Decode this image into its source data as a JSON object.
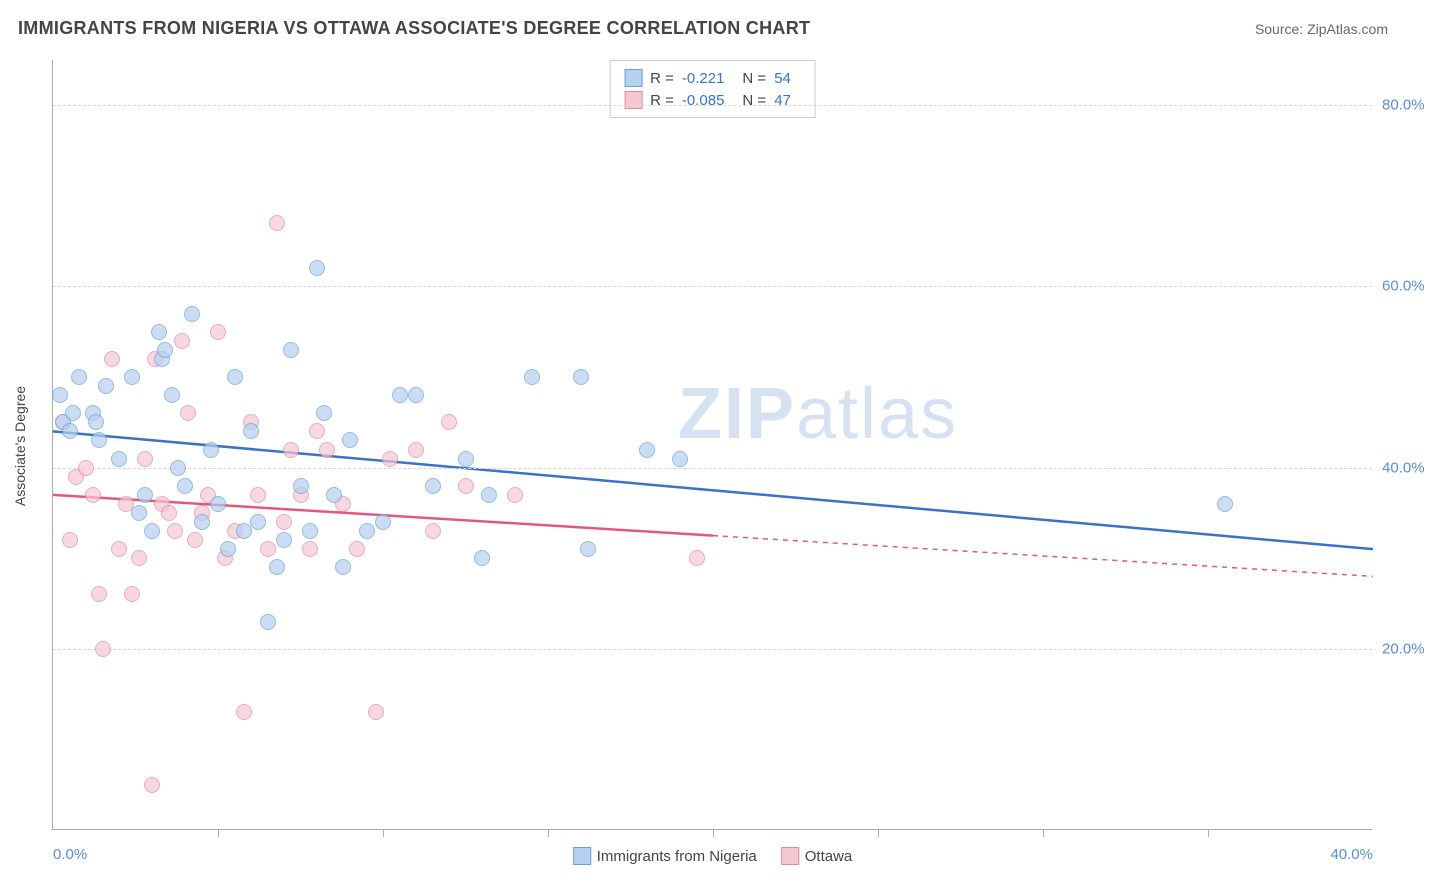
{
  "header": {
    "title": "IMMIGRANTS FROM NIGERIA VS OTTAWA ASSOCIATE'S DEGREE CORRELATION CHART",
    "source": "Source: ZipAtlas.com"
  },
  "chart": {
    "type": "scatter",
    "ylabel": "Associate's Degree",
    "xlim": [
      0,
      40
    ],
    "ylim": [
      0,
      85
    ],
    "xtick_minor_step": 5,
    "xtick_labels": [
      {
        "x": 0,
        "label": "0.0%"
      },
      {
        "x": 40,
        "label": "40.0%"
      }
    ],
    "ytick_labels": [
      {
        "y": 20,
        "label": "20.0%"
      },
      {
        "y": 40,
        "label": "40.0%"
      },
      {
        "y": 60,
        "label": "60.0%"
      },
      {
        "y": 80,
        "label": "80.0%"
      }
    ],
    "background_color": "#ffffff",
    "grid_color": "#d8d8d8",
    "axis_color": "#aaaaaa",
    "watermark": {
      "text_a": "ZIP",
      "text_b": "atlas",
      "color": "#d6e2f2"
    },
    "series": [
      {
        "id": "nigeria",
        "name": "Immigrants from Nigeria",
        "fill": "#b6d0ef",
        "stroke": "#6a9fd8",
        "line_color": "#3a72c8",
        "R": "-0.221",
        "N": "54",
        "trend": {
          "x1": 0,
          "y1": 44,
          "x2": 40,
          "y2": 31,
          "solid_until_x": 40
        },
        "points": [
          {
            "x": 0.2,
            "y": 48
          },
          {
            "x": 0.3,
            "y": 45
          },
          {
            "x": 0.5,
            "y": 44
          },
          {
            "x": 0.6,
            "y": 46
          },
          {
            "x": 0.8,
            "y": 50
          },
          {
            "x": 1.2,
            "y": 46
          },
          {
            "x": 1.3,
            "y": 45
          },
          {
            "x": 1.4,
            "y": 43
          },
          {
            "x": 1.6,
            "y": 49
          },
          {
            "x": 2.0,
            "y": 41
          },
          {
            "x": 2.4,
            "y": 50
          },
          {
            "x": 2.6,
            "y": 35
          },
          {
            "x": 2.8,
            "y": 37
          },
          {
            "x": 3.0,
            "y": 33
          },
          {
            "x": 3.2,
            "y": 55
          },
          {
            "x": 3.3,
            "y": 52
          },
          {
            "x": 3.4,
            "y": 53
          },
          {
            "x": 3.6,
            "y": 48
          },
          {
            "x": 3.8,
            "y": 40
          },
          {
            "x": 4.0,
            "y": 38
          },
          {
            "x": 4.2,
            "y": 57
          },
          {
            "x": 4.5,
            "y": 34
          },
          {
            "x": 4.8,
            "y": 42
          },
          {
            "x": 5.0,
            "y": 36
          },
          {
            "x": 5.3,
            "y": 31
          },
          {
            "x": 5.5,
            "y": 50
          },
          {
            "x": 5.8,
            "y": 33
          },
          {
            "x": 6.0,
            "y": 44
          },
          {
            "x": 6.2,
            "y": 34
          },
          {
            "x": 6.5,
            "y": 23
          },
          {
            "x": 6.8,
            "y": 29
          },
          {
            "x": 7.0,
            "y": 32
          },
          {
            "x": 7.2,
            "y": 53
          },
          {
            "x": 7.5,
            "y": 38
          },
          {
            "x": 7.8,
            "y": 33
          },
          {
            "x": 8.0,
            "y": 62
          },
          {
            "x": 8.2,
            "y": 46
          },
          {
            "x": 8.5,
            "y": 37
          },
          {
            "x": 8.8,
            "y": 29
          },
          {
            "x": 9.0,
            "y": 43
          },
          {
            "x": 9.5,
            "y": 33
          },
          {
            "x": 10.0,
            "y": 34
          },
          {
            "x": 10.5,
            "y": 48
          },
          {
            "x": 11.0,
            "y": 48
          },
          {
            "x": 11.5,
            "y": 38
          },
          {
            "x": 12.5,
            "y": 41
          },
          {
            "x": 13.0,
            "y": 30
          },
          {
            "x": 13.2,
            "y": 37
          },
          {
            "x": 14.5,
            "y": 50
          },
          {
            "x": 16.0,
            "y": 50
          },
          {
            "x": 16.2,
            "y": 31
          },
          {
            "x": 18.0,
            "y": 42
          },
          {
            "x": 19.0,
            "y": 41
          },
          {
            "x": 35.5,
            "y": 36
          }
        ]
      },
      {
        "id": "ottawa",
        "name": "Ottawa",
        "fill": "#f5c7d3",
        "stroke": "#e38aa3",
        "line_color": "#e15a7c",
        "R": "-0.085",
        "N": "47",
        "trend": {
          "x1": 0,
          "y1": 37,
          "x2": 40,
          "y2": 28,
          "solid_until_x": 20
        },
        "points": [
          {
            "x": 0.3,
            "y": 45
          },
          {
            "x": 0.5,
            "y": 32
          },
          {
            "x": 0.7,
            "y": 39
          },
          {
            "x": 1.0,
            "y": 40
          },
          {
            "x": 1.2,
            "y": 37
          },
          {
            "x": 1.4,
            "y": 26
          },
          {
            "x": 1.5,
            "y": 20
          },
          {
            "x": 1.8,
            "y": 52
          },
          {
            "x": 2.0,
            "y": 31
          },
          {
            "x": 2.2,
            "y": 36
          },
          {
            "x": 2.4,
            "y": 26
          },
          {
            "x": 2.6,
            "y": 30
          },
          {
            "x": 2.8,
            "y": 41
          },
          {
            "x": 3.0,
            "y": 5
          },
          {
            "x": 3.1,
            "y": 52
          },
          {
            "x": 3.3,
            "y": 36
          },
          {
            "x": 3.5,
            "y": 35
          },
          {
            "x": 3.7,
            "y": 33
          },
          {
            "x": 3.9,
            "y": 54
          },
          {
            "x": 4.1,
            "y": 46
          },
          {
            "x": 4.3,
            "y": 32
          },
          {
            "x": 4.5,
            "y": 35
          },
          {
            "x": 4.7,
            "y": 37
          },
          {
            "x": 5.0,
            "y": 55
          },
          {
            "x": 5.2,
            "y": 30
          },
          {
            "x": 5.5,
            "y": 33
          },
          {
            "x": 5.8,
            "y": 13
          },
          {
            "x": 6.0,
            "y": 45
          },
          {
            "x": 6.2,
            "y": 37
          },
          {
            "x": 6.5,
            "y": 31
          },
          {
            "x": 6.8,
            "y": 67
          },
          {
            "x": 7.0,
            "y": 34
          },
          {
            "x": 7.2,
            "y": 42
          },
          {
            "x": 7.5,
            "y": 37
          },
          {
            "x": 7.8,
            "y": 31
          },
          {
            "x": 8.0,
            "y": 44
          },
          {
            "x": 8.3,
            "y": 42
          },
          {
            "x": 8.8,
            "y": 36
          },
          {
            "x": 9.2,
            "y": 31
          },
          {
            "x": 9.8,
            "y": 13
          },
          {
            "x": 10.2,
            "y": 41
          },
          {
            "x": 11.0,
            "y": 42
          },
          {
            "x": 11.5,
            "y": 33
          },
          {
            "x": 12.0,
            "y": 45
          },
          {
            "x": 12.5,
            "y": 38
          },
          {
            "x": 14.0,
            "y": 37
          },
          {
            "x": 19.5,
            "y": 30
          }
        ]
      }
    ]
  },
  "stats_panel": {
    "rows": [
      {
        "swatch_fill": "#b6d0ef",
        "swatch_stroke": "#6a9fd8",
        "r_label": "R =",
        "r_value": "-0.221",
        "n_label": "N =",
        "n_value": "54"
      },
      {
        "swatch_fill": "#f5c7d3",
        "swatch_stroke": "#e38aa3",
        "r_label": "R =",
        "r_value": "-0.085",
        "n_label": "N =",
        "n_value": "47"
      }
    ]
  },
  "legend": {
    "items": [
      {
        "swatch_fill": "#b6d0ef",
        "swatch_stroke": "#6a9fd8",
        "label": "Immigrants from Nigeria"
      },
      {
        "swatch_fill": "#f5c7d3",
        "swatch_stroke": "#e38aa3",
        "label": "Ottawa"
      }
    ]
  }
}
